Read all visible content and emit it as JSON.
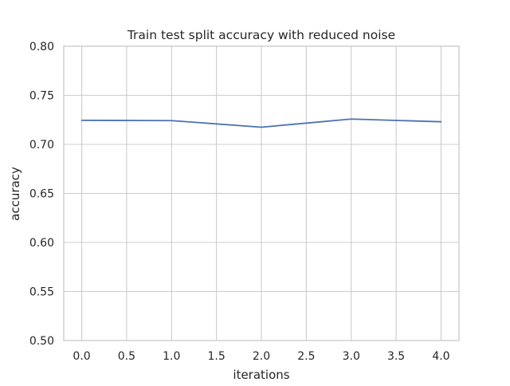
{
  "chart_data": {
    "type": "line",
    "title": "Train test split accuracy with reduced noise",
    "xlabel": "iterations",
    "ylabel": "accuracy",
    "xlim": [
      -0.2,
      4.2
    ],
    "ylim": [
      0.5,
      0.8
    ],
    "xticks": [
      0.0,
      0.5,
      1.0,
      1.5,
      2.0,
      2.5,
      3.0,
      3.5,
      4.0
    ],
    "xtick_labels": [
      "0.0",
      "0.5",
      "1.0",
      "1.5",
      "2.0",
      "2.5",
      "3.0",
      "3.5",
      "4.0"
    ],
    "yticks": [
      0.5,
      0.55,
      0.6,
      0.65,
      0.7,
      0.75,
      0.8
    ],
    "ytick_labels": [
      "0.50",
      "0.55",
      "0.60",
      "0.65",
      "0.70",
      "0.75",
      "0.80"
    ],
    "grid": true,
    "legend": "none",
    "series": [
      {
        "color": "#4c72b0",
        "x": [
          0,
          1,
          2,
          3,
          4
        ],
        "y": [
          0.7245,
          0.7242,
          0.7175,
          0.7258,
          0.723
        ]
      }
    ],
    "colors": {
      "grid": "#cccccc",
      "frame": "#cccccc",
      "text": "#262626",
      "background": "#ffffff"
    }
  }
}
